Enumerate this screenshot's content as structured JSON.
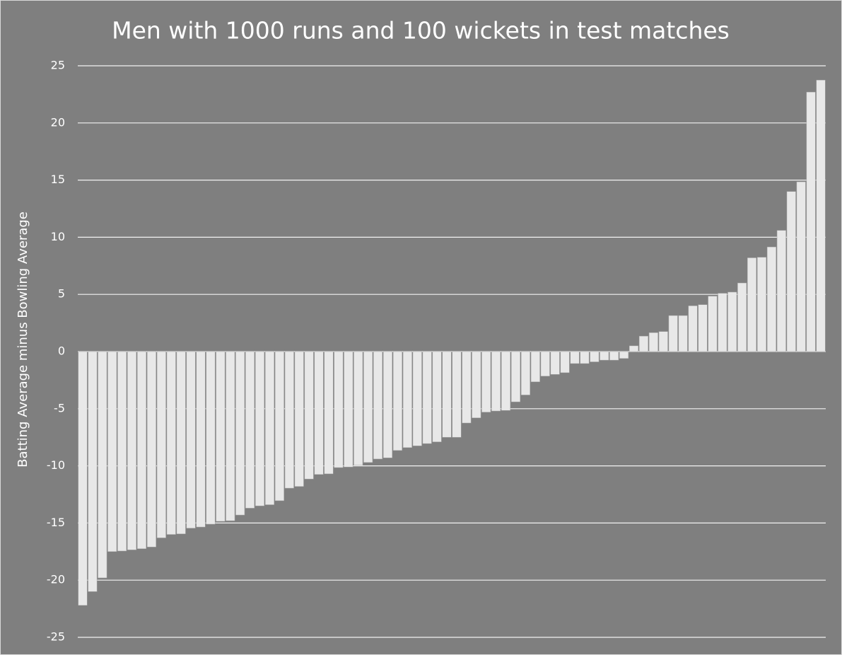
{
  "chart_data": {
    "type": "bar",
    "title": "Men with 1000 runs and 100 wickets in test matches",
    "y_label": "Batting Average minus Bowling Average",
    "values": [
      -22.2,
      -21.0,
      -19.8,
      -17.5,
      -17.45,
      -17.35,
      -17.25,
      -17.1,
      -16.3,
      -16.0,
      -15.95,
      -15.45,
      -15.35,
      -15.1,
      -14.85,
      -14.8,
      -14.3,
      -13.7,
      -13.5,
      -13.4,
      -13.05,
      -11.95,
      -11.8,
      -11.15,
      -10.75,
      -10.7,
      -10.15,
      -10.1,
      -9.95,
      -9.7,
      -9.4,
      -9.3,
      -8.65,
      -8.4,
      -8.25,
      -8.05,
      -7.9,
      -7.5,
      -7.5,
      -6.25,
      -5.8,
      -5.3,
      -5.2,
      -5.15,
      -4.4,
      -3.8,
      -2.65,
      -2.15,
      -2.0,
      -1.85,
      -1.05,
      -1.05,
      -0.9,
      -0.75,
      -0.75,
      -0.6,
      0.5,
      1.35,
      1.65,
      1.75,
      3.15,
      3.15,
      4.0,
      4.1,
      4.85,
      5.1,
      5.2,
      6.0,
      8.2,
      8.25,
      9.15,
      10.6,
      14.0,
      14.85,
      22.7,
      23.75
    ],
    "color": "#e8e8e8",
    "ylim": [
      -25,
      25
    ],
    "yticks": [
      -25,
      -20,
      -15,
      -10,
      -5,
      0,
      5,
      10,
      15,
      20,
      25
    ],
    "grid": true
  }
}
